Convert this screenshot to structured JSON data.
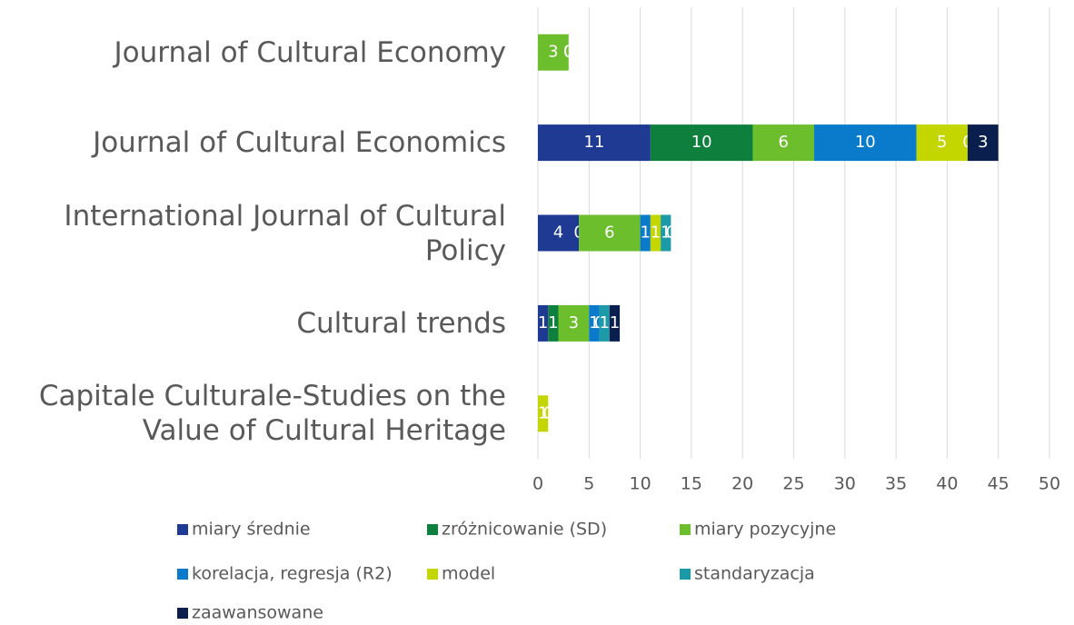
{
  "chart_data": {
    "type": "stacked-bar-horizontal",
    "categories": [
      "Journal of Cultural Economy",
      "Journal of Cultural Economics",
      "International Journal of Cultural Policy",
      "Cultural trends",
      "Capitale Culturale-Studies on the Value of Cultural Heritage"
    ],
    "series": [
      {
        "name": "miary średnie",
        "color": "#1f3a93",
        "values": [
          0,
          11,
          4,
          1,
          0
        ]
      },
      {
        "name": "zróżnicowanie (SD)",
        "color": "#0e7f3c",
        "values": [
          0,
          10,
          0,
          1,
          0
        ]
      },
      {
        "name": "miary pozycyjne",
        "color": "#6dbe2d",
        "values": [
          3,
          6,
          6,
          3,
          0
        ]
      },
      {
        "name": "korelacja, regresja (R2)",
        "color": "#0a7bcb",
        "values": [
          0,
          10,
          1,
          1,
          0
        ]
      },
      {
        "name": "model",
        "color": "#c4d600",
        "values": [
          0,
          5,
          1,
          0,
          1
        ]
      },
      {
        "name": "standaryzacja",
        "color": "#1c9aa8",
        "values": [
          0,
          0,
          1,
          1,
          0
        ]
      },
      {
        "name": "zaawansowane",
        "color": "#0b1f4f",
        "values": [
          0,
          3,
          0,
          1,
          0
        ]
      }
    ],
    "xlim": [
      0,
      50
    ],
    "xticks": [
      0,
      5,
      10,
      15,
      20,
      25,
      30,
      35,
      40,
      45,
      50
    ],
    "grid": true,
    "legend": "bottom"
  }
}
